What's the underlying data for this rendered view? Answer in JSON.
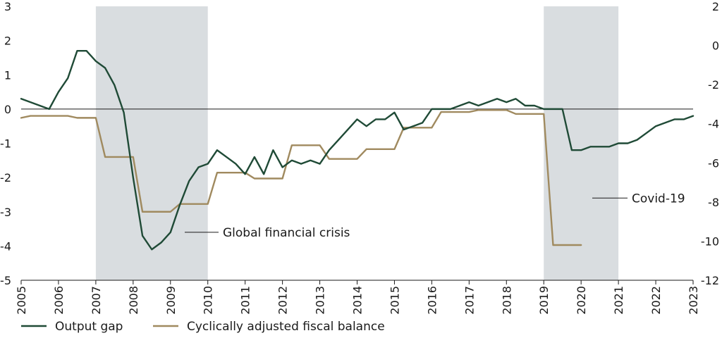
{
  "chart_data": {
    "type": "line",
    "title": "",
    "xlabel": "",
    "ylabel": "",
    "xlim": [
      2005,
      2023
    ],
    "ylim_left": [
      -5,
      3
    ],
    "ylim_right": [
      -12,
      2
    ],
    "yticks_left": [
      "3",
      "2",
      "1",
      "0",
      "-1",
      "-2",
      "-3",
      "-4",
      "-5"
    ],
    "yticks_right": [
      "2",
      "0",
      "-2",
      "-4",
      "-6",
      "-8",
      "-10",
      "-12"
    ],
    "xticks": [
      "2005",
      "2006",
      "2007",
      "2008",
      "2009",
      "2010",
      "2011",
      "2012",
      "2013",
      "2014",
      "2015",
      "2016",
      "2017",
      "2018",
      "2019",
      "2020",
      "2021",
      "2022",
      "2023"
    ],
    "grid": false,
    "legend_position": "bottom-left",
    "shaded_periods": [
      {
        "label": "Global financial crisis",
        "start": 2007.0,
        "end": 2010.0
      },
      {
        "label": "Covid-19",
        "start": 2019.0,
        "end": 2021.0
      }
    ],
    "series": [
      {
        "name": "Output gap",
        "axis": "left",
        "color": "#1f4a36",
        "x": [
          2005.0,
          2005.25,
          2005.5,
          2005.75,
          2006.0,
          2006.25,
          2006.5,
          2006.75,
          2007.0,
          2007.25,
          2007.5,
          2007.75,
          2008.0,
          2008.25,
          2008.5,
          2008.75,
          2009.0,
          2009.25,
          2009.5,
          2009.75,
          2010.0,
          2010.25,
          2010.5,
          2010.75,
          2011.0,
          2011.25,
          2011.5,
          2011.75,
          2012.0,
          2012.25,
          2012.5,
          2012.75,
          2013.0,
          2013.25,
          2013.5,
          2013.75,
          2014.0,
          2014.25,
          2014.5,
          2014.75,
          2015.0,
          2015.25,
          2015.5,
          2015.75,
          2016.0,
          2016.25,
          2016.5,
          2016.75,
          2017.0,
          2017.25,
          2017.5,
          2017.75,
          2018.0,
          2018.25,
          2018.5,
          2018.75,
          2019.0,
          2019.25,
          2019.5,
          2019.75,
          2020.0,
          2020.25,
          2020.5,
          2020.75,
          2021.0,
          2021.25,
          2021.5,
          2021.75,
          2022.0,
          2022.25,
          2022.5,
          2022.75,
          2023.0
        ],
        "y": [
          0.3,
          0.2,
          0.1,
          0.0,
          0.5,
          0.9,
          1.7,
          1.7,
          1.4,
          1.2,
          0.7,
          -0.1,
          -2.0,
          -3.7,
          -4.1,
          -3.9,
          -3.6,
          -2.8,
          -2.1,
          -1.7,
          -1.6,
          -1.2,
          -1.4,
          -1.6,
          -1.9,
          -1.4,
          -1.9,
          -1.2,
          -1.7,
          -1.5,
          -1.6,
          -1.5,
          -1.6,
          -1.2,
          -0.9,
          -0.6,
          -0.3,
          -0.5,
          -0.3,
          -0.3,
          -0.1,
          -0.6,
          -0.5,
          -0.4,
          0.0,
          0.0,
          0.0,
          0.1,
          0.2,
          0.1,
          0.2,
          0.3,
          0.2,
          0.3,
          0.1,
          0.1,
          0.0,
          0.0,
          0.0,
          -1.2,
          -1.2,
          -1.1,
          -1.1,
          -1.1,
          -1.0,
          -1.0,
          -0.9,
          -0.7,
          -0.5,
          -0.4,
          -0.3,
          -0.3,
          -0.2
        ]
      },
      {
        "name": "Cyclically adjusted fiscal balance",
        "axis": "right",
        "color": "#a08a5f",
        "x": [
          2005.0,
          2005.25,
          2006.25,
          2006.5,
          2007.0,
          2007.25,
          2008.0,
          2008.25,
          2009.0,
          2009.25,
          2010.0,
          2010.25,
          2011.0,
          2011.25,
          2012.0,
          2012.25,
          2013.0,
          2013.25,
          2014.0,
          2014.25,
          2015.0,
          2015.25,
          2016.0,
          2016.25,
          2017.0,
          2017.25,
          2018.0,
          2018.25,
          2019.0,
          2019.25,
          2020.0
        ],
        "y": [
          -3.7,
          -3.6,
          -3.6,
          -3.7,
          -3.7,
          -5.7,
          -5.7,
          -8.5,
          -8.5,
          -8.1,
          -8.1,
          -6.5,
          -6.5,
          -6.8,
          -6.8,
          -5.1,
          -5.1,
          -5.8,
          -5.8,
          -5.3,
          -5.3,
          -4.2,
          -4.2,
          -3.4,
          -3.4,
          -3.3,
          -3.3,
          -3.5,
          -3.5,
          -10.2,
          -10.2
        ]
      }
    ],
    "annotations": [
      {
        "text": "Global financial crisis",
        "series_axis": "left",
        "x": 2009.4,
        "y": -3.6
      },
      {
        "text": "Covid-19",
        "series_axis": "right",
        "x": 2020.4,
        "y": -7.8
      }
    ]
  }
}
